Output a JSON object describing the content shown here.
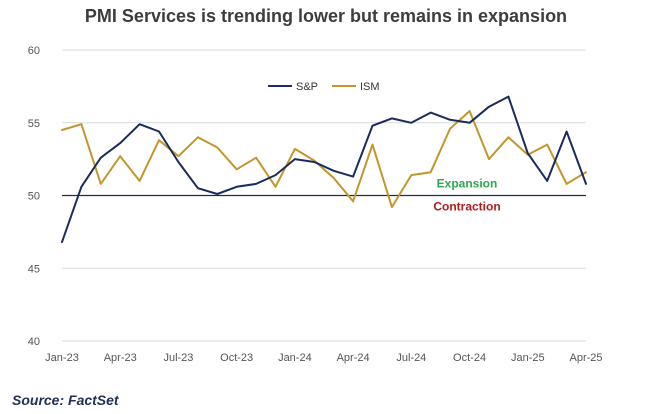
{
  "chart_data": {
    "type": "line",
    "title": "PMI Services is trending lower but remains in expansion",
    "source": "Source: FactSet",
    "ylim": [
      40,
      60
    ],
    "yticks": [
      "40",
      "45",
      "50",
      "55",
      "60"
    ],
    "xtick_labels": [
      "Jan-23",
      "Apr-23",
      "Jul-23",
      "Oct-23",
      "Jan-24",
      "Apr-24",
      "Jul-24",
      "Oct-24",
      "Jan-25",
      "Apr-25"
    ],
    "x": [
      "Jan-23",
      "Feb-23",
      "Mar-23",
      "Apr-23",
      "May-23",
      "Jun-23",
      "Jul-23",
      "Aug-23",
      "Sep-23",
      "Oct-23",
      "Nov-23",
      "Dec-23",
      "Jan-24",
      "Feb-24",
      "Mar-24",
      "Apr-24",
      "May-24",
      "Jun-24",
      "Jul-24",
      "Aug-24",
      "Sep-24",
      "Oct-24",
      "Nov-24",
      "Dec-24",
      "Jan-25",
      "Feb-25",
      "Mar-25",
      "Apr-25"
    ],
    "series": [
      {
        "name": "S&P",
        "color": "#1a2b5e",
        "values": [
          46.8,
          50.6,
          52.6,
          53.6,
          54.9,
          54.4,
          52.3,
          50.5,
          50.1,
          50.6,
          50.8,
          51.4,
          52.5,
          52.3,
          51.7,
          51.3,
          54.8,
          55.3,
          55.0,
          55.7,
          55.2,
          55.0,
          56.1,
          56.8,
          52.9,
          51.0,
          54.4,
          50.8
        ]
      },
      {
        "name": "ISM",
        "color": "#c2962a",
        "values": [
          54.5,
          54.9,
          50.8,
          52.7,
          51.0,
          53.8,
          52.7,
          54.0,
          53.3,
          51.8,
          52.6,
          50.6,
          53.2,
          52.4,
          51.2,
          49.6,
          53.5,
          49.2,
          51.4,
          51.6,
          54.6,
          55.8,
          52.5,
          54.0,
          52.8,
          53.5,
          50.8,
          51.6
        ]
      }
    ],
    "reference_line": {
      "value": 50,
      "label_above": "Expansion",
      "label_below": "Contraction",
      "label_above_color": "#2fa84f",
      "label_below_color": "#b11a1a"
    },
    "legend": {
      "position": "top-center"
    },
    "grid": true
  }
}
